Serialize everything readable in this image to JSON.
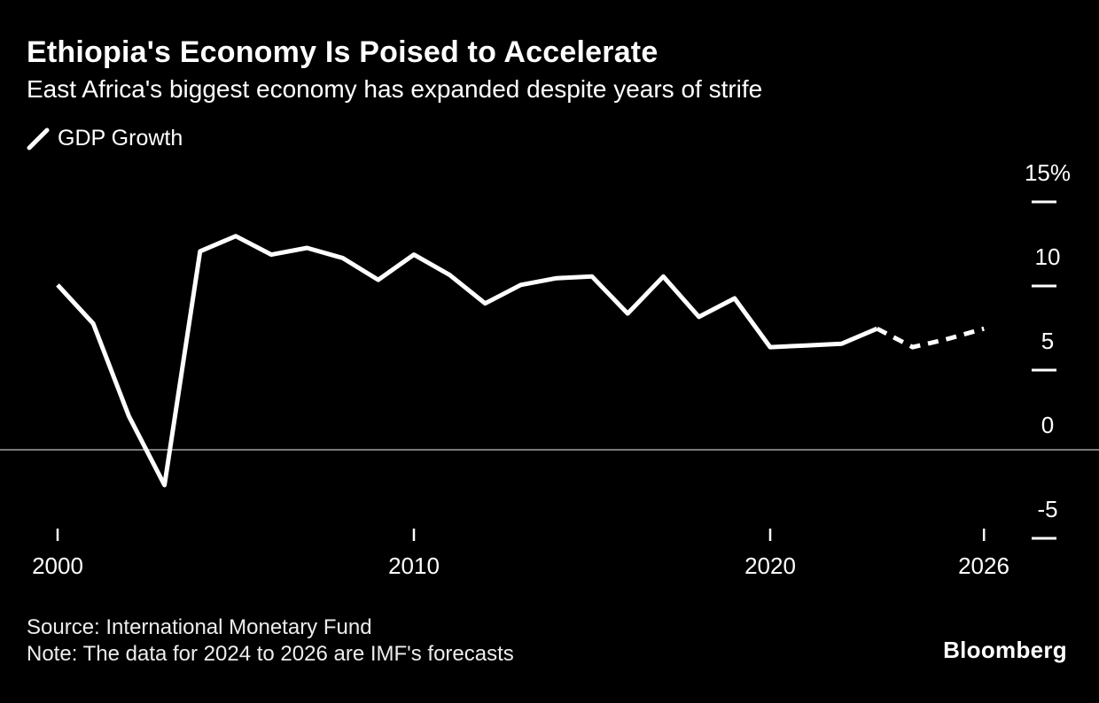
{
  "header": {
    "title": "Ethiopia's Economy Is Poised to Accelerate",
    "subtitle": "East Africa's biggest economy has expanded despite years of strife"
  },
  "legend": {
    "label": "GDP Growth"
  },
  "footer": {
    "source": "Source: International Monetary Fund",
    "note": "Note: The data for 2024 to 2026 are IMF's forecasts",
    "brand": "Bloomberg"
  },
  "colors": {
    "background": "#000000",
    "line": "#ffffff",
    "zero_line": "#7a7a7a",
    "text": "#ffffff"
  },
  "chart_data": {
    "type": "line",
    "title": "Ethiopia's Economy Is Poised to Accelerate",
    "subtitle": "East Africa's biggest economy has expanded despite years of strife",
    "unit": "%",
    "ylim": [
      -7,
      16
    ],
    "grid": "right-edge ticks only, horizontal zero line",
    "legend_position": "top-left",
    "forecast_dashed_from_year": 2023,
    "forecast_note": "2024 to 2026 are IMF forecasts (dashed)",
    "series": [
      {
        "name": "GDP Growth",
        "x": [
          2000,
          2001,
          2002,
          2003,
          2004,
          2005,
          2006,
          2007,
          2008,
          2009,
          2010,
          2011,
          2012,
          2013,
          2014,
          2015,
          2016,
          2017,
          2018,
          2019,
          2020,
          2021,
          2022,
          2023,
          2024,
          2025,
          2026
        ],
        "values": [
          9.8,
          7.5,
          2.0,
          -2.1,
          11.8,
          12.7,
          11.6,
          12.0,
          11.4,
          10.1,
          11.6,
          10.4,
          8.7,
          9.8,
          10.2,
          10.3,
          8.1,
          10.3,
          7.9,
          9.0,
          6.1,
          6.2,
          6.3,
          7.2,
          6.1,
          6.6,
          7.2
        ]
      }
    ],
    "y_ticks": [
      {
        "value": 15,
        "label": "15%"
      },
      {
        "value": 10,
        "label": "10"
      },
      {
        "value": 5,
        "label": "5"
      },
      {
        "value": 0,
        "label": "0"
      },
      {
        "value": -5,
        "label": "-5"
      }
    ],
    "x_ticks": [
      {
        "value": 2000,
        "label": "2000"
      },
      {
        "value": 2010,
        "label": "2010"
      },
      {
        "value": 2020,
        "label": "2020"
      },
      {
        "value": 2026,
        "label": "2026"
      }
    ]
  }
}
